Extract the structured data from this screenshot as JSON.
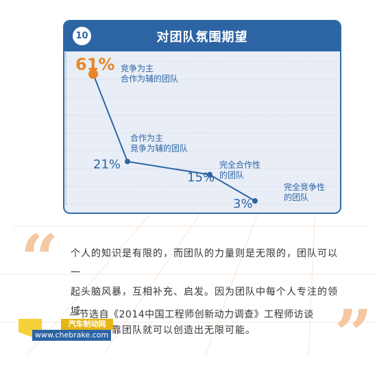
{
  "header": {
    "number": "10",
    "title": "对团队氛围期望"
  },
  "chart_data": {
    "type": "line",
    "title": "对团队氛围期望",
    "categories": [
      "竞争为主合作为辅的团队",
      "合作为主竞争为辅的团队",
      "完全合作性的团队",
      "完全竞争性的团队"
    ],
    "values": [
      61,
      21,
      15,
      3
    ],
    "value_labels": [
      "61%",
      "21%",
      "15%",
      "3%"
    ],
    "label_lines": [
      [
        "竞争为主",
        "合作为辅的团队"
      ],
      [
        "合作为主",
        "竞争为辅的团队"
      ],
      [
        "完全合作性",
        "的团队"
      ],
      [
        "完全竞争性",
        "的团队"
      ]
    ],
    "highlight_index": 0,
    "colors": {
      "line": "#2d64a4",
      "highlight": "#e8862a",
      "text": "#2d64a4"
    }
  },
  "quote": {
    "lines": [
      "个人的知识是有限的，而团队的力量则是无限的，团队可以一",
      "起头脑风暴，互相补充、启发。因为团队中每个人专注的领域",
      "不同，依靠团队就可以创造出无限可能。"
    ],
    "source": "—节选自《2014中国工程师创新动力调查》工程师访谈",
    "open_mark": "“",
    "close_mark": "”"
  },
  "watermark": {
    "title": "汽车制动网",
    "url": "www.chebrake.com"
  }
}
